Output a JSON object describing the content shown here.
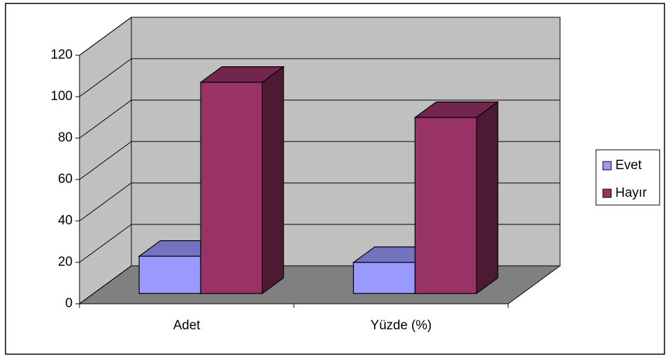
{
  "chart_data": {
    "type": "bar3d",
    "categories": [
      "Adet",
      "Yüzde (%)"
    ],
    "series": [
      {
        "name": "Evet",
        "color": "#9999ff",
        "values": [
          18,
          15
        ]
      },
      {
        "name": "Hayır",
        "color": "#993366",
        "values": [
          102,
          85
        ]
      }
    ],
    "ylim": [
      0,
      120
    ],
    "yticks": [
      0,
      20,
      40,
      60,
      80,
      100,
      120
    ],
    "grid": true,
    "legend": "right"
  }
}
